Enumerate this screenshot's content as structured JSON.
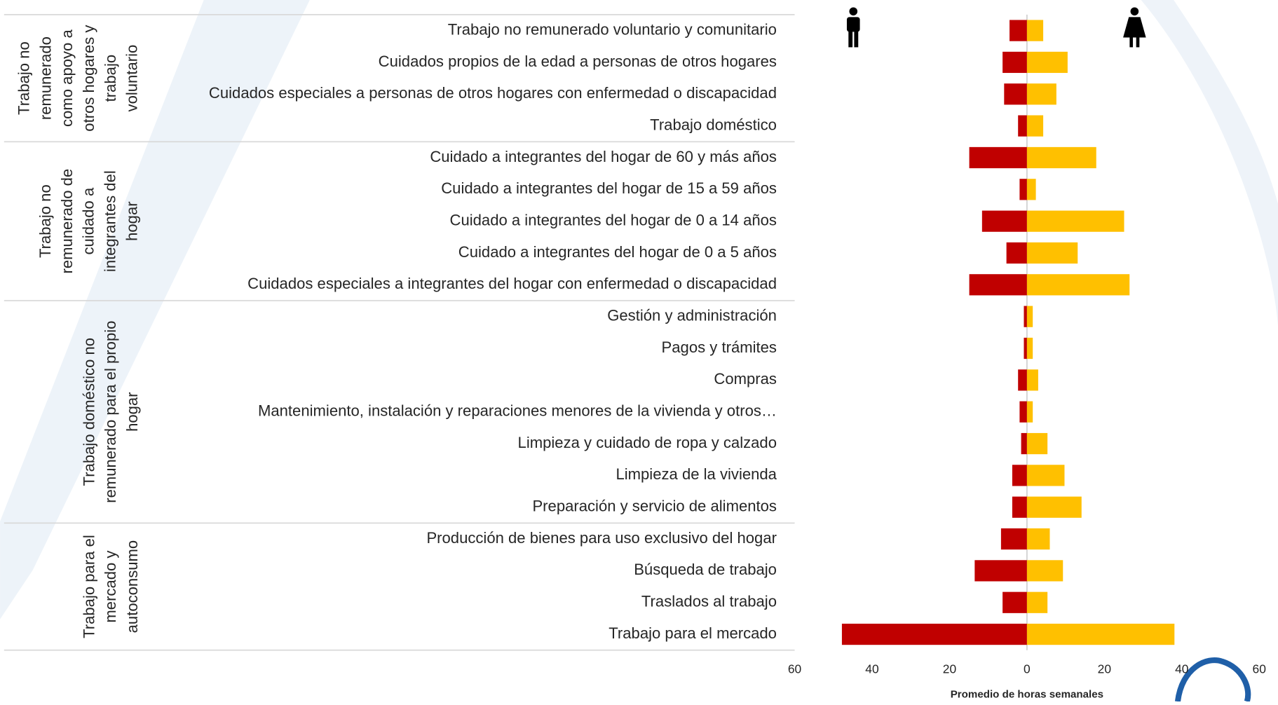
{
  "chart_data": {
    "type": "butterfly-bar",
    "categories": [
      "Trabajo no remunerado voluntario y comunitario",
      "Cuidados propios de la edad a personas de otros hogares",
      "Cuidados especiales a personas de otros hogares con enfermedad o discapacidad",
      "Trabajo doméstico",
      "Cuidado a integrantes del hogar de 60 y más años",
      "Cuidado a integrantes del hogar de 15 a 59 años",
      "Cuidado a integrantes del hogar de 0 a 14 años",
      "Cuidado a integrantes del hogar de 0 a 5 años",
      "Cuidados especiales a integrantes del hogar con enfermedad o discapacidad",
      "Gestión y administración",
      "Pagos y trámites",
      "Compras",
      "Mantenimiento, instalación y reparaciones menores de la vivienda y otros…",
      "Limpieza y cuidado de ropa y calzado",
      "Limpieza de la vivienda",
      "Preparación y servicio de alimentos",
      "Producción de bienes para uso exclusivo del hogar",
      "Búsqueda de trabajo",
      "Traslados al trabajo",
      "Trabajo para el mercado"
    ],
    "groups": [
      {
        "lines": [
          "Trabajo no",
          "remunerado",
          "como apoyo a",
          "otros hogares y",
          "trabajo",
          "voluntario"
        ]
      },
      {
        "lines": [
          "Trabajo no",
          "remunerado de",
          "cuidado a",
          "integrantes del",
          "hogar"
        ]
      },
      {
        "lines": [
          "Trabajo doméstico no",
          "remunerado para el propio",
          "hogar"
        ]
      },
      {
        "lines": [
          "Trabajo para el",
          "mercado y",
          "autoconsumo"
        ]
      }
    ],
    "series": [
      {
        "color": "#c00000",
        "values": [
          -4.5,
          -6.3,
          -5.9,
          -2.3,
          -14.9,
          -1.9,
          -11.6,
          -5.3,
          -14.9,
          -0.8,
          -0.8,
          -2.3,
          -1.9,
          -1.5,
          -3.8,
          -3.8,
          -6.7,
          -13.5,
          -6.3,
          -47.8
        ]
      },
      {
        "color": "#ffc000",
        "values": [
          4.2,
          10.5,
          7.6,
          4.2,
          17.9,
          2.3,
          25.1,
          13.1,
          26.5,
          1.5,
          1.5,
          2.9,
          1.5,
          5.3,
          9.7,
          14.1,
          5.9,
          9.3,
          5.3,
          38.1
        ]
      }
    ],
    "xlim": [
      -60,
      60
    ],
    "xticks": [
      {
        "value": -60,
        "label": "60"
      },
      {
        "value": -40,
        "label": "40"
      },
      {
        "value": -20,
        "label": "20"
      },
      0,
      20,
      40,
      60
    ],
    "xlabel": "Promedio de horas semanales"
  }
}
